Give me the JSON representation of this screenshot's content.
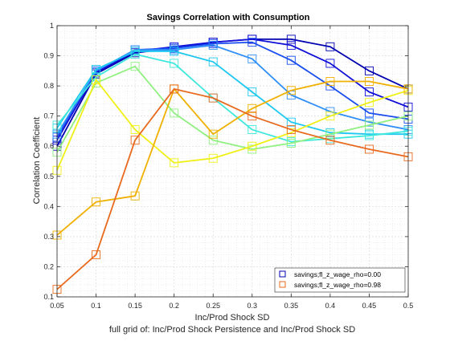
{
  "chart_data": {
    "type": "line",
    "title": "Savings Correlation with Consumption",
    "xlabel": "Inc/Prod Shock SD",
    "ylabel": "Correlation Coefficient",
    "caption": "full grid of: Inc/Prod Shock Persistence and Inc/Prod Shock SD",
    "xlim": [
      0.05,
      0.5
    ],
    "ylim": [
      0.1,
      1
    ],
    "x": [
      0.05,
      0.1,
      0.15,
      0.2,
      0.25,
      0.3,
      0.35,
      0.4,
      0.45,
      0.5
    ],
    "xticks": [
      "0.05",
      "0.1",
      "0.15",
      "0.2",
      "0.25",
      "0.3",
      "0.35",
      "0.4",
      "0.45",
      "0.5"
    ],
    "yticks": [
      "0.1",
      "0.2",
      "0.3",
      "0.4",
      "0.5",
      "0.6",
      "0.7",
      "0.8",
      "0.9",
      "1"
    ],
    "grid": true,
    "legend_position": "bottom-right",
    "legend": [
      {
        "label": "savings;fl_z_wage_rho=0.00",
        "color": "#0000b0"
      },
      {
        "label": "savings;fl_z_wage_rho=0.98",
        "color": "#e86a1e"
      }
    ],
    "series": [
      {
        "color": "#0000b0",
        "values": [
          0.6,
          0.84,
          0.91,
          0.925,
          0.945,
          0.955,
          0.955,
          0.93,
          0.85,
          0.79
        ]
      },
      {
        "color": "#1010d8",
        "values": [
          0.62,
          0.845,
          0.915,
          0.93,
          0.945,
          0.955,
          0.935,
          0.875,
          0.78,
          0.73
        ]
      },
      {
        "color": "#1a4ef0",
        "values": [
          0.63,
          0.85,
          0.92,
          0.925,
          0.94,
          0.945,
          0.885,
          0.8,
          0.71,
          0.69
        ]
      },
      {
        "color": "#2f8ff8",
        "values": [
          0.64,
          0.85,
          0.92,
          0.92,
          0.935,
          0.89,
          0.77,
          0.715,
          0.68,
          0.655
        ]
      },
      {
        "color": "#1ec8f0",
        "values": [
          0.66,
          0.855,
          0.915,
          0.915,
          0.88,
          0.78,
          0.68,
          0.645,
          0.64,
          0.64
        ]
      },
      {
        "color": "#3fe8dc",
        "values": [
          0.67,
          0.83,
          0.905,
          0.875,
          0.76,
          0.655,
          0.615,
          0.625,
          0.635,
          0.65
        ]
      },
      {
        "color": "#90f080",
        "values": [
          0.58,
          0.81,
          0.865,
          0.71,
          0.62,
          0.59,
          0.61,
          0.64,
          0.67,
          0.7
        ]
      },
      {
        "color": "#f0f018",
        "values": [
          0.52,
          0.82,
          0.655,
          0.545,
          0.56,
          0.6,
          0.645,
          0.7,
          0.745,
          0.785
        ]
      },
      {
        "color": "#f0b000",
        "values": [
          0.305,
          0.415,
          0.435,
          0.79,
          0.64,
          0.725,
          0.785,
          0.815,
          0.815,
          0.79
        ]
      },
      {
        "color": "#e86a1e",
        "values": [
          0.125,
          0.24,
          0.62,
          0.79,
          0.76,
          0.7,
          0.655,
          0.62,
          0.59,
          0.565
        ]
      }
    ]
  }
}
